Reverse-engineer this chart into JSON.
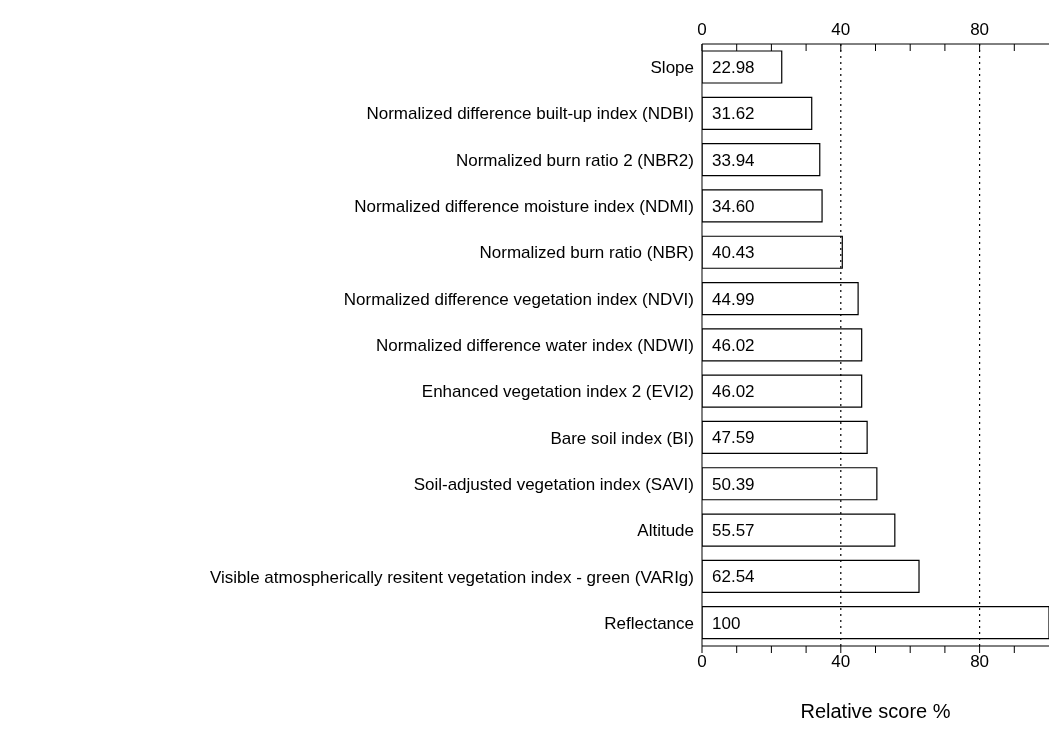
{
  "chart_data": {
    "type": "bar",
    "orientation": "horizontal",
    "xlabel": "Relative score %",
    "categories": [
      "Slope",
      "Normalized difference built-up index (NDBI)",
      "Normalized burn ratio 2 (NBR2)",
      "Normalized difference moisture index (NDMI)",
      "Normalized burn ratio (NBR)",
      "Normalized difference vegetation index (NDVI)",
      "Normalized difference water index (NDWI)",
      "Enhanced vegetation index 2 (EVI2)",
      "Bare soil index (BI)",
      "Soil-adjusted vegetation index (SAVI)",
      "Altitude",
      "Visible atmospherically resitent vegetation index - green (VARIg)",
      "Reflectance"
    ],
    "values": [
      22.98,
      31.62,
      33.94,
      34.6,
      40.43,
      44.99,
      46.02,
      46.02,
      47.59,
      50.39,
      55.57,
      62.54,
      100
    ],
    "value_labels": [
      "22.98",
      "31.62",
      "33.94",
      "34.60",
      "40.43",
      "44.99",
      "46.02",
      "46.02",
      "47.59",
      "50.39",
      "55.57",
      "62.54",
      "100"
    ],
    "color": "#ffffff",
    "xlim": [
      0,
      100
    ],
    "xticks": [
      0,
      {
        "value": 10,
        "label": null
      },
      {
        "value": 20,
        "label": null
      },
      {
        "value": 30,
        "label": null
      },
      40,
      {
        "value": 50,
        "label": null
      },
      {
        "value": 60,
        "label": null
      },
      {
        "value": 70,
        "label": null
      },
      80,
      {
        "value": 90,
        "label": null
      }
    ],
    "x2lim": [
      0,
      100
    ],
    "x2ticks": [
      0,
      {
        "value": 10,
        "label": null
      },
      {
        "value": 20,
        "label": null
      },
      {
        "value": 30,
        "label": null
      },
      40,
      {
        "value": 50,
        "label": null
      },
      {
        "value": 60,
        "label": null
      },
      {
        "value": 70,
        "label": null
      },
      80,
      {
        "value": 90,
        "label": null
      }
    ],
    "ref_lines": [
      {
        "axis": "x",
        "value": 40,
        "line_style": "dotted"
      },
      {
        "axis": "x",
        "value": 80,
        "line_style": "dotted"
      }
    ],
    "grid": false,
    "legend": false
  }
}
